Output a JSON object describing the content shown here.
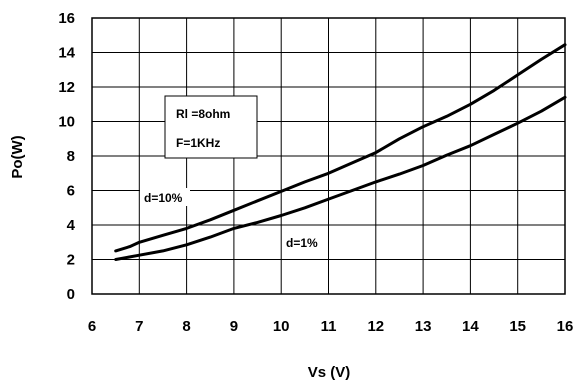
{
  "chart_data": {
    "type": "line",
    "title": "",
    "xlabel": "Vs (V)",
    "ylabel": "Po(W)",
    "xlim": [
      6,
      16
    ],
    "ylim": [
      0,
      16
    ],
    "xticks": [
      6,
      7,
      8,
      9,
      10,
      11,
      12,
      13,
      14,
      15,
      16
    ],
    "yticks": [
      0,
      2,
      4,
      6,
      8,
      10,
      12,
      14,
      16
    ],
    "grid": true,
    "series": [
      {
        "name": "d=10%",
        "x": [
          6.5,
          6.8,
          7.0,
          7.5,
          8.0,
          8.5,
          9.0,
          9.5,
          10.0,
          10.5,
          11.0,
          11.5,
          12.0,
          12.5,
          13.0,
          13.5,
          14.0,
          14.5,
          15.0,
          15.5,
          16.0
        ],
        "y": [
          2.5,
          2.75,
          3.0,
          3.4,
          3.8,
          4.3,
          4.85,
          5.4,
          5.95,
          6.5,
          7.0,
          7.6,
          8.2,
          9.0,
          9.7,
          10.3,
          11.0,
          11.8,
          12.7,
          13.6,
          14.45
        ]
      },
      {
        "name": "d=1%",
        "x": [
          6.5,
          7.0,
          7.5,
          8.0,
          8.5,
          9.0,
          9.5,
          10.0,
          10.5,
          11.0,
          11.5,
          12.0,
          12.5,
          13.0,
          13.5,
          14.0,
          14.5,
          15.0,
          15.5,
          16.0
        ],
        "y": [
          2.0,
          2.25,
          2.5,
          2.85,
          3.3,
          3.8,
          4.15,
          4.55,
          5.0,
          5.5,
          6.0,
          6.5,
          6.95,
          7.45,
          8.05,
          8.6,
          9.25,
          9.9,
          10.6,
          11.4
        ]
      }
    ],
    "annotations": {
      "rl": "Rl =8ohm",
      "freq": "F=1KHz"
    }
  }
}
